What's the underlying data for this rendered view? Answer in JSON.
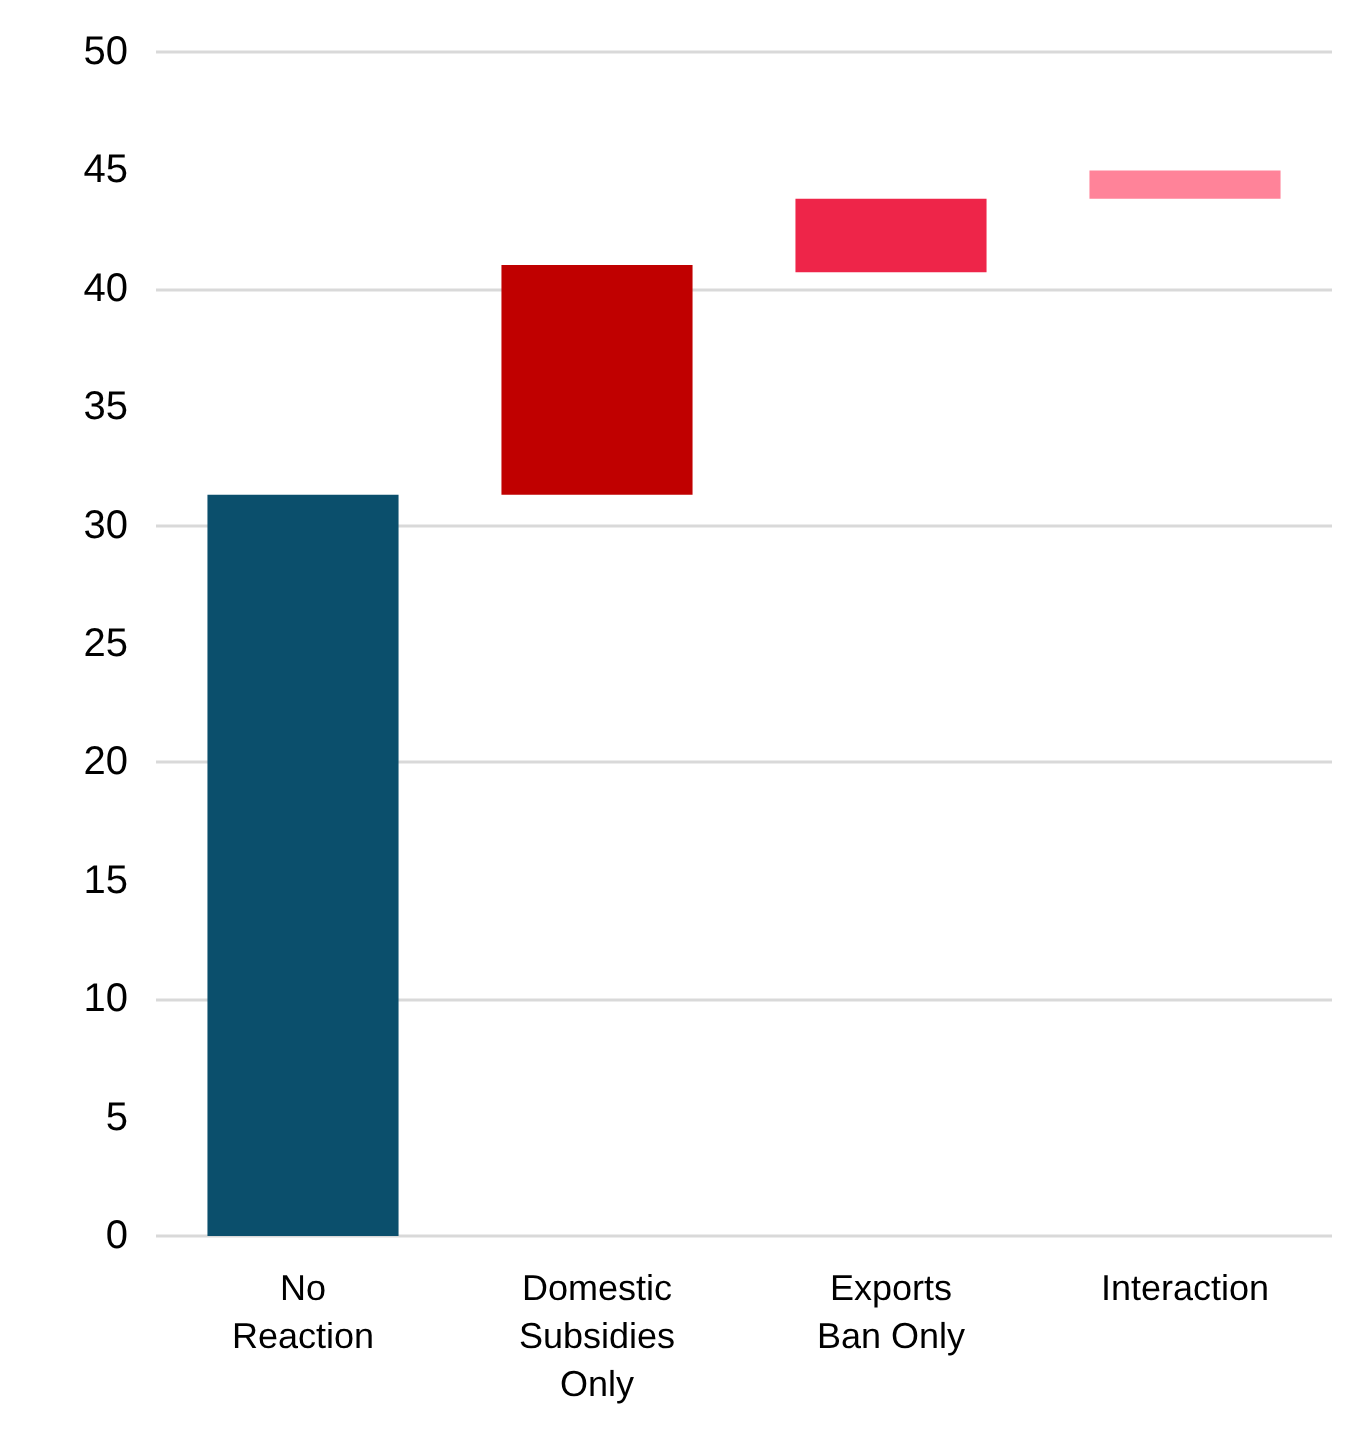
{
  "chart_data": {
    "type": "bar",
    "categories": [
      "No\nReaction",
      "Domestic\nSubsidies\nOnly",
      "Exports\nBan Only",
      "Interaction"
    ],
    "values": [
      31.3,
      9.7,
      3.1,
      1.2
    ],
    "base": [
      0,
      31.3,
      40.7,
      43.8
    ],
    "colors": [
      "#0b4f6c",
      "#c00000",
      "#ee2549",
      "#ff8399"
    ],
    "ylim": [
      0,
      50
    ],
    "yticks": [
      0,
      5,
      10,
      15,
      20,
      25,
      30,
      35,
      40,
      45,
      50
    ],
    "grid": "y"
  }
}
